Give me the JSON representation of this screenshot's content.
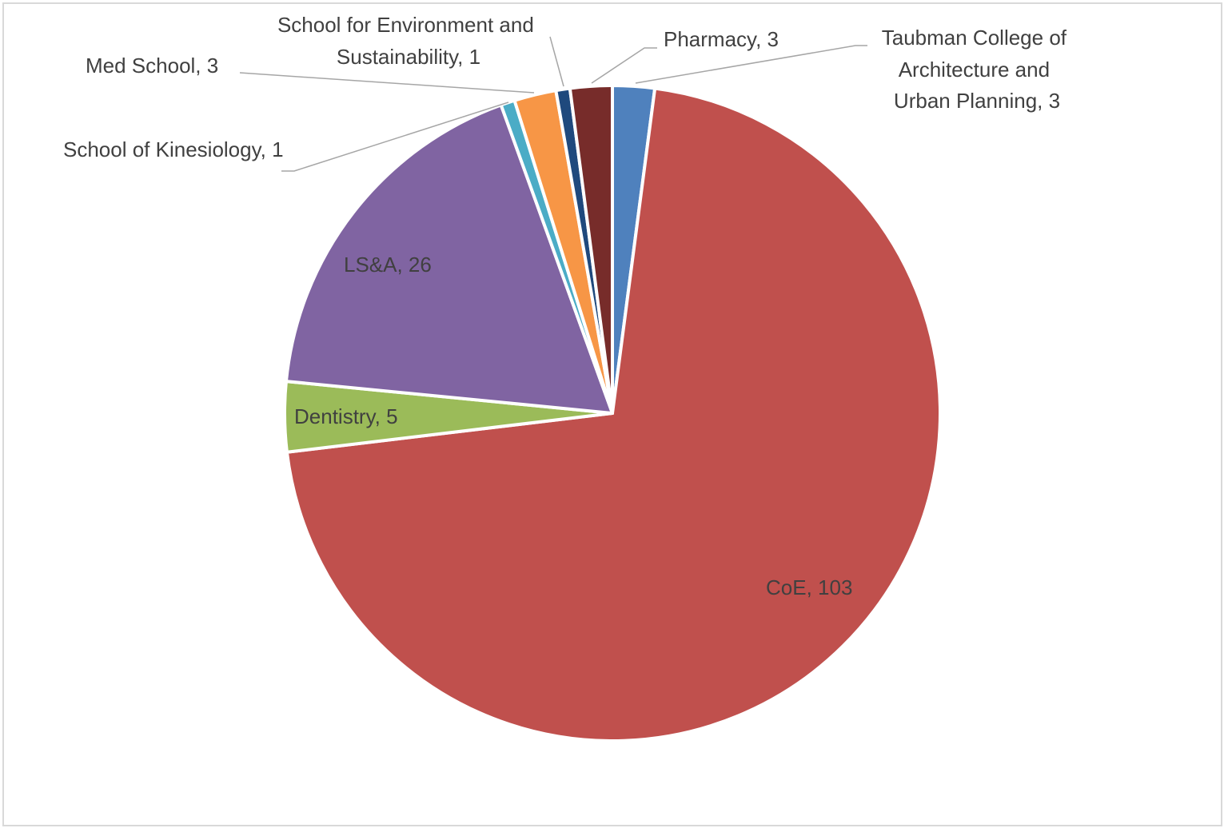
{
  "chart_data": {
    "type": "pie",
    "title": "",
    "categories": [
      "Taubman College of Architecture and Urban Planning",
      "CoE",
      "Dentistry",
      "LS&A",
      "School of Kinesiology",
      "Med School",
      "School for Environment and Sustainability",
      "Pharmacy"
    ],
    "values": [
      3,
      103,
      5,
      26,
      1,
      3,
      1,
      3
    ],
    "colors": [
      "#4F81BD",
      "#C0504D",
      "#9BBB59",
      "#8064A2",
      "#4BACC6",
      "#F79646",
      "#1F497D",
      "#772C2A"
    ],
    "start_angle": "12 o'clock",
    "direction": "clockwise",
    "legend": "none",
    "data_labels": [
      [
        "Taubman College of",
        "Architecture and",
        "Urban Planning, 3"
      ],
      [
        "CoE, 103"
      ],
      [
        "Dentistry, 5"
      ],
      [
        "LS&A, 26"
      ],
      [
        "School of Kinesiology, 1"
      ],
      [
        "Med School, 3"
      ],
      [
        "School for Environment and",
        "Sustainability, 1"
      ],
      [
        "Pharmacy, 3"
      ]
    ]
  }
}
